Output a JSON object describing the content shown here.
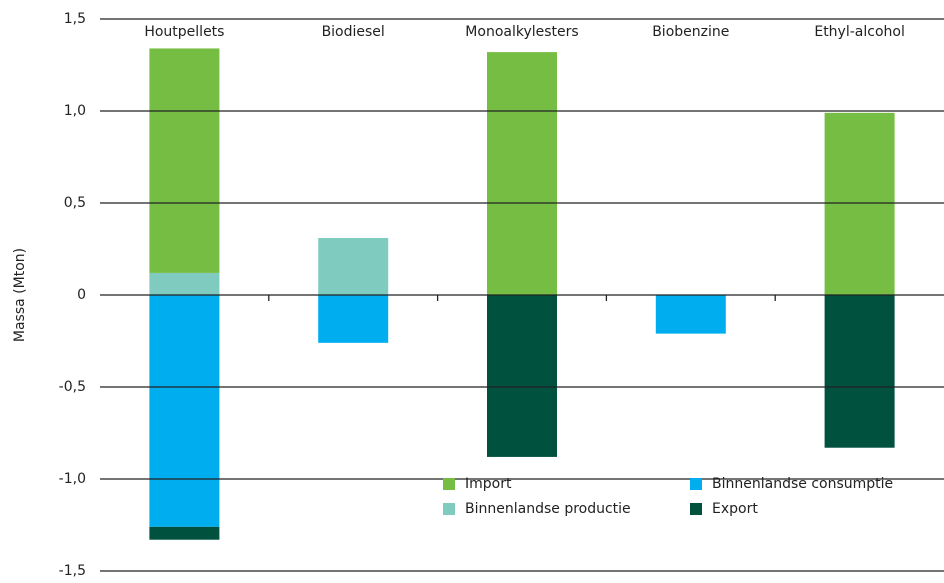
{
  "chart_data": {
    "type": "stacked_bar",
    "y_label": "Massa (Mton)",
    "categories": [
      "Houtpellets",
      "Biodiesel",
      "Monoalkylesters",
      "Biobenzine",
      "Ethyl-alcohol"
    ],
    "series": [
      {
        "name": "Binnenlandse productie",
        "color": "#7fcbbf",
        "values": [
          0.12,
          0.31,
          null,
          null,
          null
        ]
      },
      {
        "name": "Import",
        "color": "#76bd43",
        "values": [
          1.22,
          null,
          1.32,
          null,
          0.99
        ]
      },
      {
        "name": "Binnenlandse consumptie",
        "color": "#00aeef",
        "values": [
          -1.26,
          -0.26,
          null,
          -0.21,
          null
        ]
      },
      {
        "name": "Export",
        "color": "#00513e",
        "values": [
          -0.07,
          null,
          -0.88,
          null,
          -0.83
        ]
      }
    ],
    "ylim": [
      -1.5,
      1.5
    ],
    "yticks": [
      {
        "value": -1.5,
        "label": "-1,5"
      },
      {
        "value": -1.0,
        "label": "-1,0"
      },
      {
        "value": -0.5,
        "label": "-0,5"
      },
      0,
      {
        "value": 0.5,
        "label": "0,5"
      },
      {
        "value": 1.0,
        "label": "1,0"
      },
      {
        "value": 1.5,
        "label": "1,5"
      }
    ],
    "grid": true
  }
}
